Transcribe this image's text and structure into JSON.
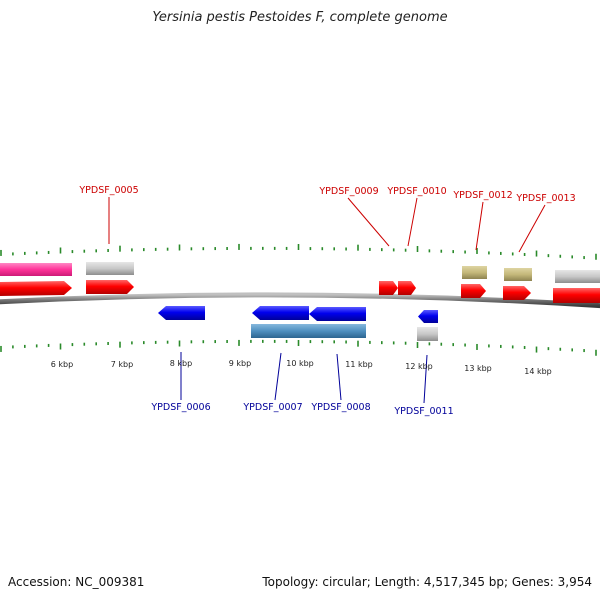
{
  "title": "Yersinia pestis Pestoides F, complete genome",
  "footer": {
    "accession": "Accession: NC_009381",
    "topology": "Topology: circular; Length: 4,517,345 bp; Genes: 3,954"
  },
  "colors": {
    "backbone": "#7a7a7a",
    "tick": "#2a8a2a",
    "cds": "#ff0000",
    "cds_minus": "#0000ff",
    "pink": "#ff3399",
    "gray": "#c8c8c8",
    "olive": "#c4b87a",
    "steel": "#4f8fbf",
    "label_forward": "#cc0000",
    "label_reverse": "#000099"
  },
  "scale_labels": [
    "6 kbp",
    "7 kbp",
    "8 kbp",
    "9 kbp",
    "10 kbp",
    "11 kbp",
    "12 kbp",
    "13 kbp",
    "14 kbp"
  ],
  "gene_labels": [
    {
      "text": "YPDSF_0005",
      "strand": "forward"
    },
    {
      "text": "YPDSF_0009",
      "strand": "forward"
    },
    {
      "text": "YPDSF_0010",
      "strand": "forward"
    },
    {
      "text": "YPDSF_0012",
      "strand": "forward"
    },
    {
      "text": "YPDSF_0013",
      "strand": "forward"
    },
    {
      "text": "YPDSF_0006",
      "strand": "reverse"
    },
    {
      "text": "YPDSF_0007",
      "strand": "reverse"
    },
    {
      "text": "YPDSF_0008",
      "strand": "reverse"
    },
    {
      "text": "YPDSF_0011",
      "strand": "reverse"
    }
  ]
}
